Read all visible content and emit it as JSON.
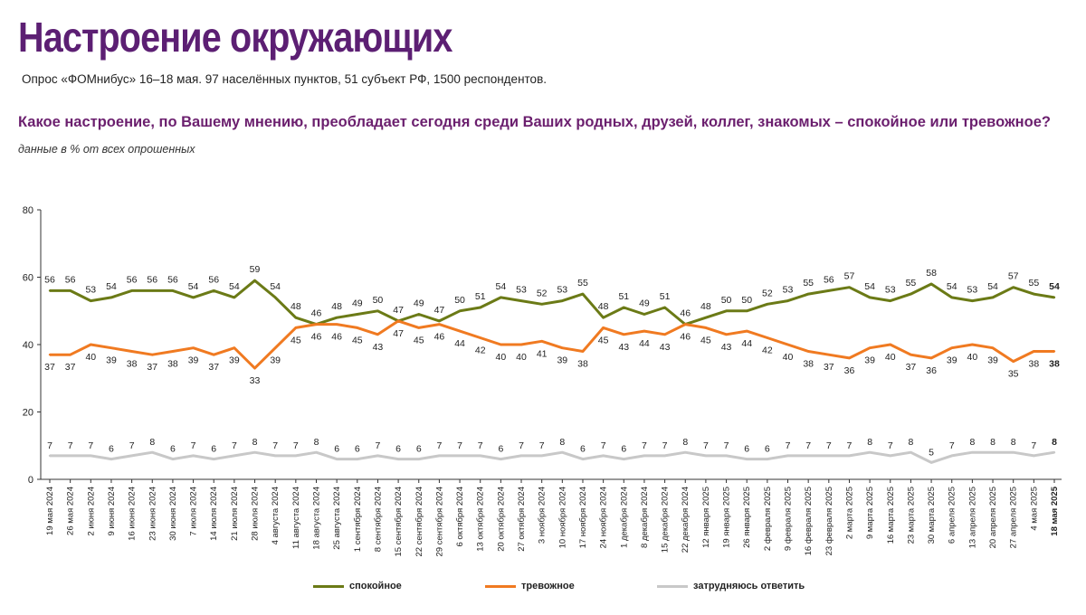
{
  "header": {
    "title": "Настроение окружающих",
    "subtitle": "Опрос «ФОМнибус» 16–18 мая. 97 населённых пунктов, 51 субъект РФ, 1500 респондентов.",
    "question": "Какое настроение, по Вашему мнению, преобладает сегодня среди Ваших родных, друзей, коллег, знакомых – спокойное или тревожное?",
    "note": "данные в % от всех опрошенных"
  },
  "colors": {
    "calm": "#6b7a16",
    "anxious": "#f07a21",
    "hard": "#c8c8c8",
    "axis": "#333333"
  },
  "chart_data": {
    "type": "line",
    "ylim": [
      0,
      80
    ],
    "yticks": [
      0,
      20,
      40,
      60,
      80
    ],
    "categories": [
      "19 мая 2024",
      "26 мая 2024",
      "2 июня 2024",
      "9 июня 2024",
      "16 июня 2024",
      "23 июня 2024",
      "30 июня 2024",
      "7 июля 2024",
      "14 июля 2024",
      "21 июля 2024",
      "28 июля 2024",
      "4 августа 2024",
      "11 августа 2024",
      "18 августа 2024",
      "25 августа 2024",
      "1 сентября 2024",
      "8 сентября 2024",
      "15 сентября 2024",
      "22 сентября 2024",
      "29 сентября 2024",
      "6 октября 2024",
      "13 октября 2024",
      "20 октября 2024",
      "27 октября 2024",
      "3 ноября 2024",
      "10 ноября 2024",
      "17 ноября 2024",
      "24 ноября 2024",
      "1 декабря 2024",
      "8 декабря 2024",
      "15 декабря 2024",
      "22 декабря 2024",
      "12 января 2025",
      "19 января 2025",
      "26 января 2025",
      "2 февраля 2025",
      "9 февраля 2025",
      "16 февраля 2025",
      "23 февраля 2025",
      "2 марта 2025",
      "9 марта 2025",
      "16 марта 2025",
      "23 марта 2025",
      "30 марта 2025",
      "6 апреля 2025",
      "13 апреля 2025",
      "20 апреля 2025",
      "27 апреля 2025",
      "4 мая 2025",
      "18 мая 2025"
    ],
    "series": [
      {
        "name": "спокойное",
        "key": "calm",
        "values": [
          56,
          56,
          53,
          54,
          56,
          56,
          56,
          54,
          56,
          54,
          59,
          54,
          48,
          46,
          48,
          49,
          50,
          47,
          49,
          47,
          50,
          51,
          54,
          53,
          52,
          53,
          55,
          48,
          51,
          49,
          51,
          46,
          48,
          50,
          50,
          52,
          53,
          55,
          56,
          57,
          54,
          53,
          55,
          58,
          54,
          53,
          54,
          57,
          55,
          54
        ]
      },
      {
        "name": "тревожное",
        "key": "anxious",
        "values": [
          37,
          37,
          40,
          39,
          38,
          37,
          38,
          39,
          37,
          39,
          33,
          39,
          45,
          46,
          46,
          45,
          43,
          47,
          45,
          46,
          44,
          42,
          40,
          40,
          41,
          39,
          38,
          45,
          43,
          44,
          43,
          46,
          45,
          43,
          44,
          42,
          40,
          38,
          37,
          36,
          39,
          40,
          37,
          36,
          39,
          40,
          39,
          35,
          38,
          38
        ]
      },
      {
        "name": "затрудняюсь ответить",
        "key": "hard",
        "values": [
          7,
          7,
          7,
          6,
          7,
          8,
          6,
          7,
          6,
          7,
          8,
          7,
          7,
          8,
          6,
          6,
          7,
          6,
          6,
          7,
          7,
          7,
          6,
          7,
          7,
          8,
          6,
          7,
          6,
          7,
          7,
          8,
          7,
          7,
          6,
          6,
          7,
          7,
          7,
          7,
          8,
          7,
          8,
          5,
          7,
          8,
          8,
          8,
          7,
          8
        ]
      }
    ],
    "legend": [
      "спокойное",
      "тревожное",
      "затрудняюсь ответить"
    ]
  }
}
